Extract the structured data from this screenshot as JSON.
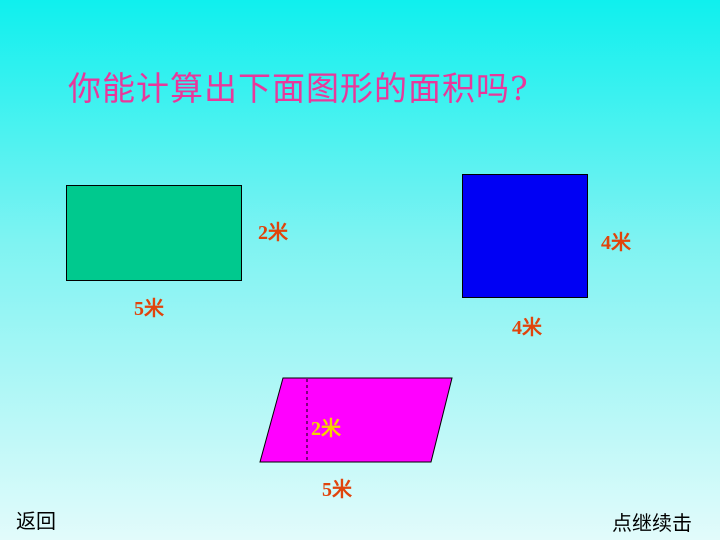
{
  "title": "你能计算出下面图形的面积吗?",
  "shapes": {
    "rectangle": {
      "width_label": "5米",
      "height_label": "2米",
      "color": "#00c98e"
    },
    "square": {
      "width_label": "4米",
      "height_label": "4米",
      "color": "#0000f4"
    },
    "parallelogram": {
      "base_label": "5米",
      "height_label": "2米",
      "color": "#ff00ff"
    }
  },
  "nav": {
    "back_label": "返回",
    "continue_label": "点继续击"
  },
  "colors": {
    "title": "#e9379b",
    "label": "#e0440c",
    "height_label_inside": "#f5d200"
  }
}
